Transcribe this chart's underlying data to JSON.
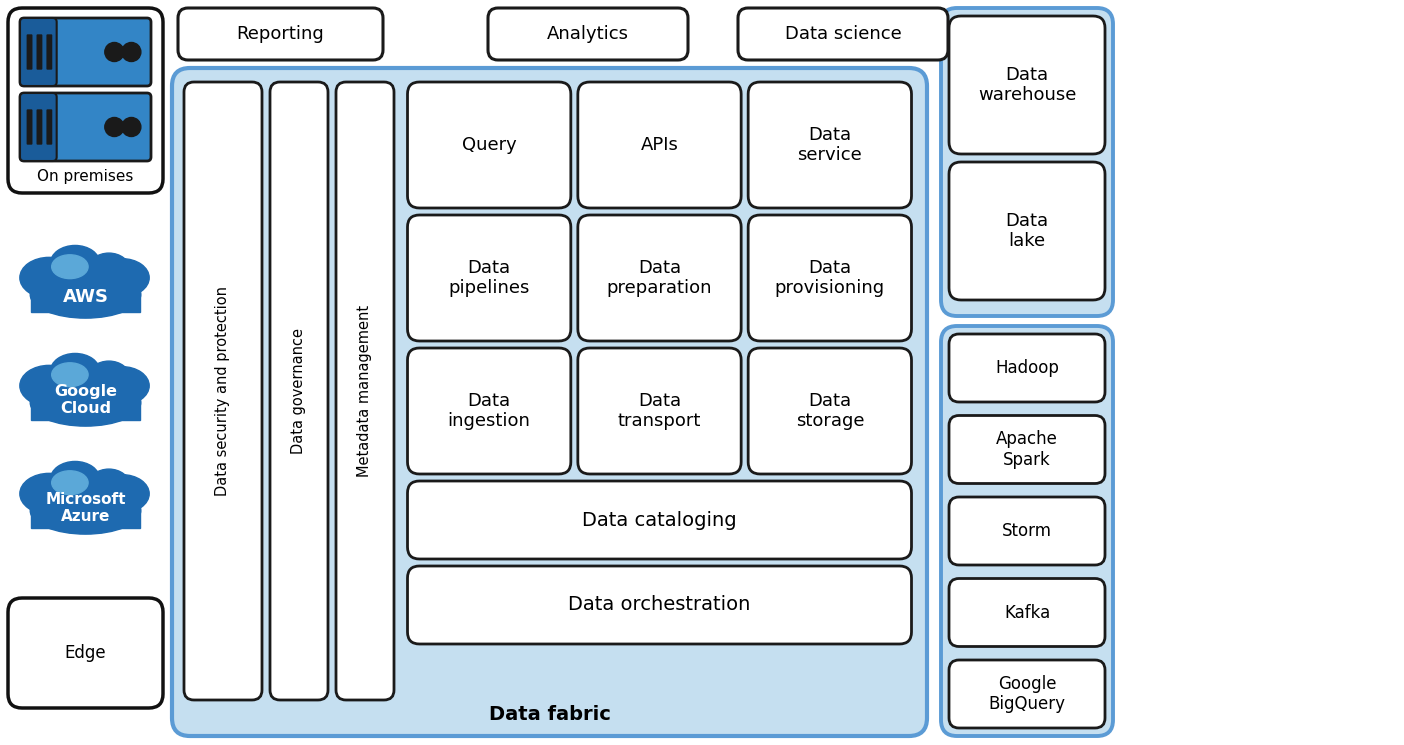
{
  "figsize": [
    14.04,
    7.45
  ],
  "dpi": 100,
  "bg_color": "#ffffff",
  "light_blue": "#c5dff0",
  "border_blue": "#5b9bd5",
  "box_bg": "#ffffff",
  "box_border": "#1a1a1a",
  "cloud_dark": "#1e6ab0",
  "cloud_mid": "#2e7fc0",
  "cloud_light": "#5ba8d8",
  "server_blue": "#3385c6",
  "left_items": [
    "On premises",
    "AWS",
    "Google\nCloud",
    "Microsoft\nAzure",
    "Edge"
  ],
  "top_labels": [
    "Reporting",
    "Analytics",
    "Data science"
  ],
  "vertical_boxes": [
    "Data security and protection",
    "Data governance",
    "Metadata management"
  ],
  "grid_row1": [
    "Query",
    "APIs",
    "Data\nservice"
  ],
  "grid_row2": [
    "Data\npipelines",
    "Data\npreparation",
    "Data\nprovisioning"
  ],
  "grid_row3": [
    "Data\ningestion",
    "Data\ntransport",
    "Data\nstorage"
  ],
  "wide_row4": "Data cataloging",
  "wide_row5": "Data orchestration",
  "fabric_label": "Data fabric",
  "right_top": [
    "Data\nwarehouse",
    "Data\nlake"
  ],
  "right_bottom": [
    "Hadoop",
    "Apache\nSpark",
    "Storm",
    "Kafka",
    "Google\nBigQuery"
  ]
}
